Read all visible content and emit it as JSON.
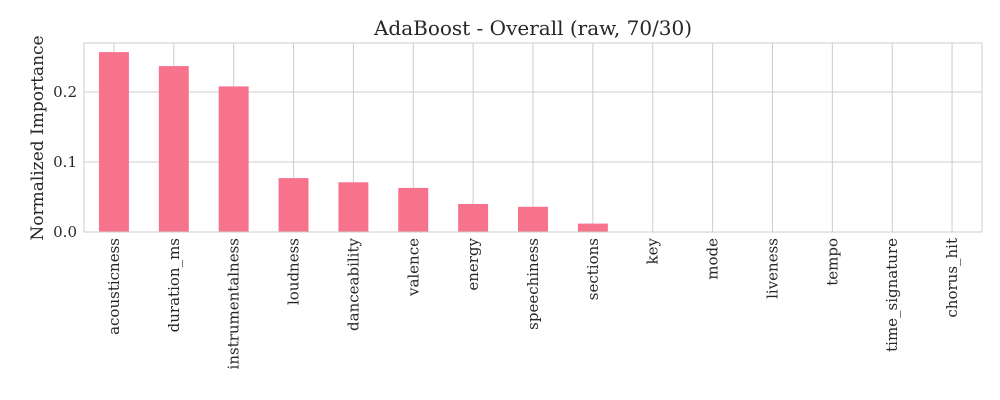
{
  "chart_data": {
    "type": "bar",
    "title": "AdaBoost - Overall (raw, 70/30)",
    "xlabel": "",
    "ylabel": "Normalized Importance",
    "categories": [
      "acousticness",
      "duration_ms",
      "instrumentalness",
      "loudness",
      "danceability",
      "valence",
      "energy",
      "speechiness",
      "sections",
      "key",
      "mode",
      "liveness",
      "tempo",
      "time_signature",
      "chorus_hit"
    ],
    "values": [
      0.257,
      0.237,
      0.208,
      0.077,
      0.071,
      0.063,
      0.04,
      0.036,
      0.012,
      0.0,
      0.0,
      0.0,
      0.0,
      0.0,
      0.0
    ],
    "ylim": [
      0,
      0.27
    ],
    "yticks": [
      0.0,
      0.1,
      0.2
    ],
    "ytick_labels": [
      "0.0",
      "0.1",
      "0.2"
    ],
    "grid": true,
    "bar_color": "#f7728b"
  }
}
